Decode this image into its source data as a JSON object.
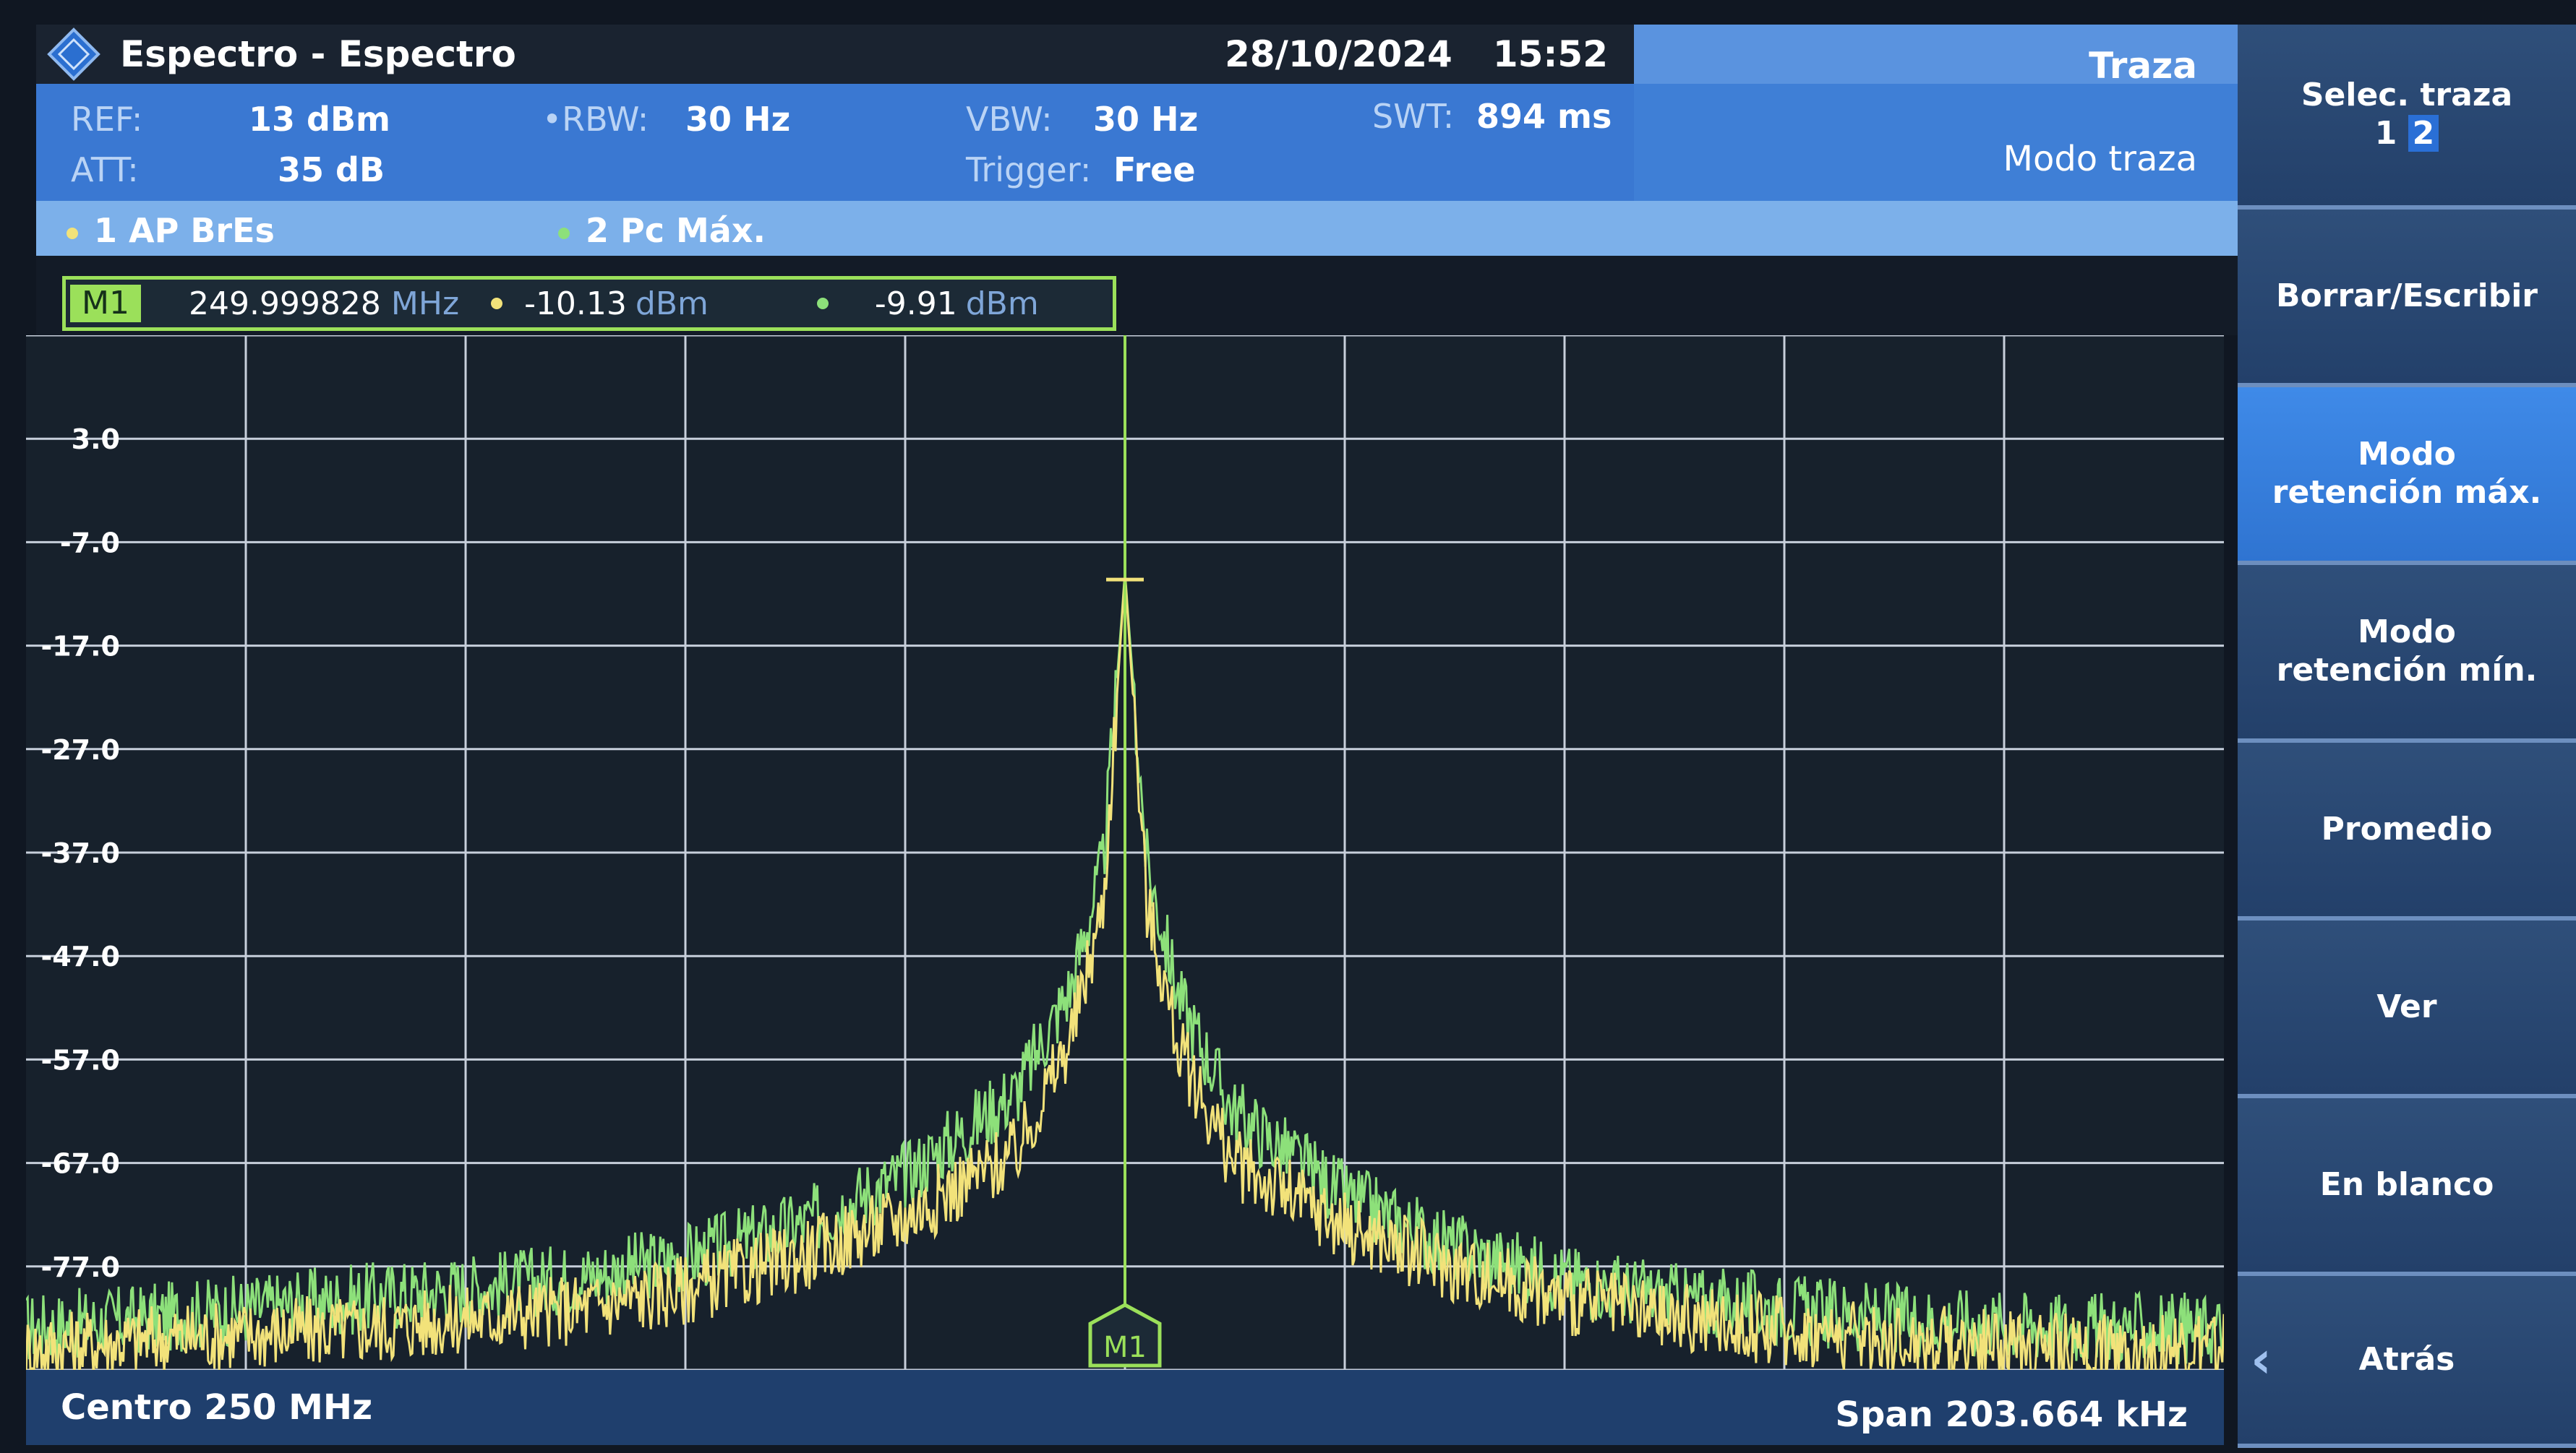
{
  "window": {
    "title": "Espectro - Espectro",
    "date": "28/10/2024",
    "time": "15:52"
  },
  "trace_header": {
    "title": "Traza",
    "mode": "Modo traza"
  },
  "params": {
    "ref_label": "REF:",
    "ref_value": "13 dBm",
    "att_label": "ATT:",
    "att_value": "35 dB",
    "rbw_label": "RBW:",
    "rbw_value": "30 Hz",
    "vbw_label": "VBW:",
    "vbw_value": "30 Hz",
    "trigger_label": "Trigger:",
    "trigger_value": "Free",
    "swt_label": "SWT:",
    "swt_value": "894 ms"
  },
  "legend": {
    "trace1": "1 AP  BrEs",
    "trace2": "2 Pc  Máx.",
    "trace1_color": "#f2e27a",
    "trace2_color": "#8de07a"
  },
  "marker": {
    "tag": "M1",
    "frequency": "249.999828",
    "frequency_unit": "MHz",
    "level1": "-10.13",
    "level1_unit": "dBm",
    "level2": "-9.91",
    "level2_unit": "dBm",
    "flag_label": "M1"
  },
  "chart_data": {
    "type": "line",
    "y_tick_labels": [
      "3.0",
      "-7.0",
      "-17.0",
      "-27.0",
      "-37.0",
      "-47.0",
      "-57.0",
      "-67.0",
      "-77.0"
    ],
    "ylim": [
      -87,
      13
    ],
    "xlim": [
      249.898168,
      250.101832
    ],
    "x_center_label": "Centro 250 MHz",
    "x_span_label": "Span 203.664 kHz",
    "grid": true,
    "series": [
      {
        "name": "1 AP  BrEs",
        "color": "#f2e27a",
        "x": [
          249.898,
          249.91,
          249.93,
          249.95,
          249.96,
          249.97,
          249.98,
          249.99,
          249.995,
          249.998,
          250.0,
          250.002,
          250.005,
          250.01,
          250.02,
          250.03,
          250.04,
          250.05,
          250.07,
          250.09,
          250.102
        ],
        "y": [
          -85,
          -84,
          -83,
          -81,
          -79,
          -76,
          -72,
          -66,
          -55,
          -42,
          -10,
          -42,
          -56,
          -67,
          -73,
          -77,
          -80,
          -82,
          -84,
          -85,
          -85
        ]
      },
      {
        "name": "2 Pc  Máx.",
        "color": "#8de07a",
        "x": [
          249.898,
          249.91,
          249.93,
          249.95,
          249.96,
          249.97,
          249.98,
          249.99,
          249.995,
          249.998,
          250.0,
          250.002,
          250.005,
          250.01,
          250.02,
          250.03,
          250.04,
          250.05,
          250.07,
          250.09,
          250.102
        ],
        "y": [
          -83,
          -82,
          -80,
          -78,
          -76,
          -73,
          -68,
          -60,
          -50,
          -38,
          -9.91,
          -38,
          -51,
          -62,
          -70,
          -75,
          -78,
          -80,
          -82,
          -83,
          -83
        ]
      }
    ]
  },
  "bottom": {
    "center": "Centro 250 MHz",
    "span": "Span 203.664 kHz"
  },
  "softkeys": {
    "select_trace": "Selec. traza",
    "select_trace_n1": "1",
    "select_trace_n2": "2",
    "clear_write": "Borrar/Escribir",
    "max_hold_line1": "Modo",
    "max_hold_line2": "retención máx.",
    "min_hold_line1": "Modo",
    "min_hold_line2": "retención mín.",
    "average": "Promedio",
    "view": "Ver",
    "blank": "En blanco",
    "back": "Atrás"
  }
}
